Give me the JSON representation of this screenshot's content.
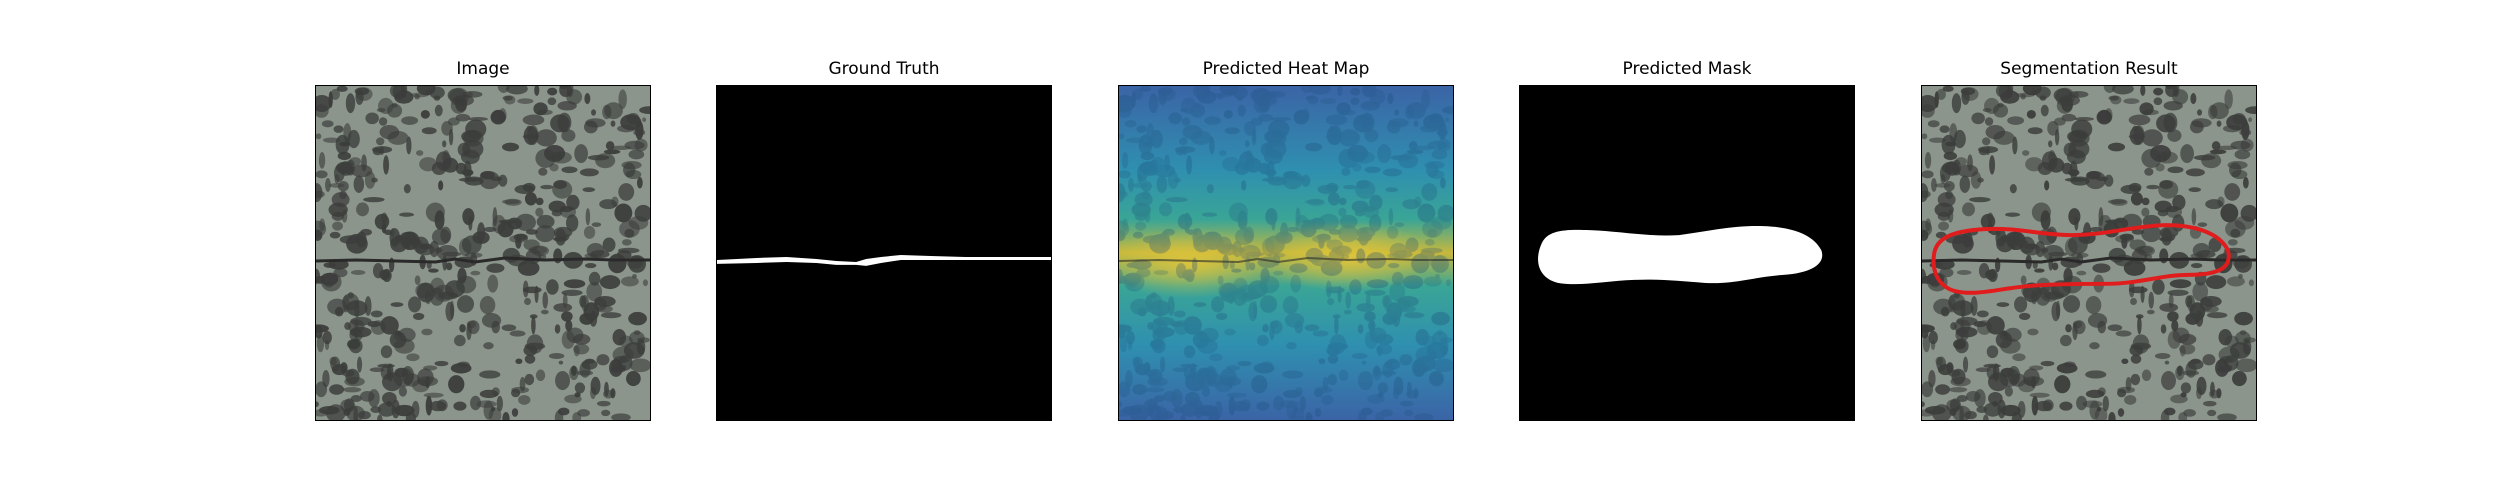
{
  "figure": {
    "panels": [
      {
        "title": "Image"
      },
      {
        "title": "Ground Truth"
      },
      {
        "title": "Predicted Heat Map"
      },
      {
        "title": "Predicted Mask"
      },
      {
        "title": "Segmentation Result"
      }
    ]
  },
  "colors": {
    "texture_base": "#8c958c",
    "texture_dark": "#3b3d3b",
    "crack": "#2a2a2a",
    "mask_fg": "#ffffff",
    "mask_bg": "#000000",
    "contour": "#e01c1c",
    "heat_low": "#3b64a6",
    "heat_mid": "#2fa39a",
    "heat_high": "#d9c23a"
  }
}
